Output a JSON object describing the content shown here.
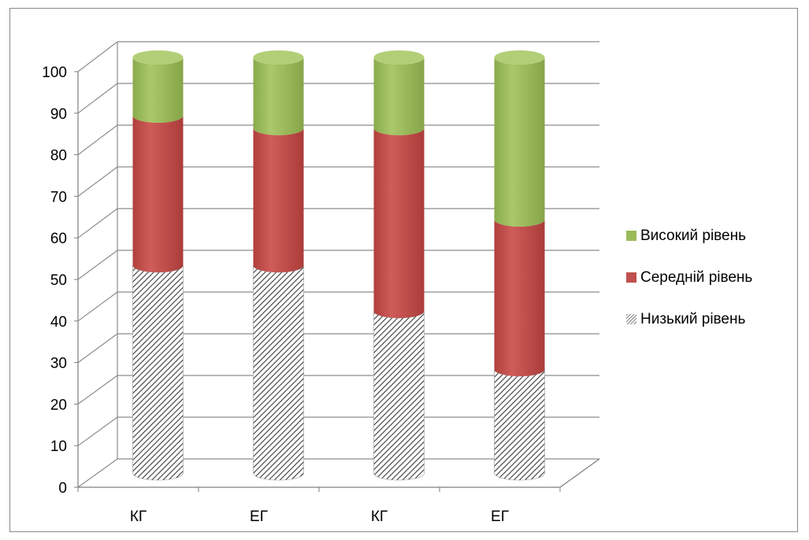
{
  "chart_data": {
    "type": "bar",
    "stacked": true,
    "style": "3d-cylinder",
    "categories": [
      "КГ",
      "ЕГ",
      "КГ",
      "ЕГ"
    ],
    "series": [
      {
        "name": "Низький рівень",
        "values": [
          50,
          50,
          39,
          25
        ],
        "color": "#d9d9d9",
        "pattern": "diagonal-hatch"
      },
      {
        "name": "Середній рівень",
        "values": [
          36,
          33,
          44,
          36
        ],
        "color": "#c0504d"
      },
      {
        "name": "Високий рівень",
        "values": [
          14,
          17,
          17,
          39
        ],
        "color": "#9bbb59"
      }
    ],
    "legend_order": [
      "Високий рівень",
      "Середній рівень",
      "Низький рівень"
    ],
    "yticks": [
      "0",
      "10",
      "20",
      "30",
      "40",
      "50",
      "60",
      "70",
      "80",
      "90",
      "100"
    ],
    "ylim": [
      0,
      100
    ],
    "grid": true,
    "legend_position": "right",
    "title": "",
    "xlabel": "",
    "ylabel": ""
  }
}
